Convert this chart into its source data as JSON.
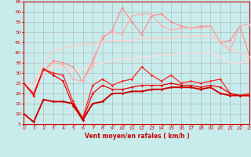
{
  "xlabel": "Vent moyen/en rafales ( km/h )",
  "xlim": [
    0,
    23
  ],
  "ylim": [
    5,
    65
  ],
  "yticks": [
    5,
    10,
    15,
    20,
    25,
    30,
    35,
    40,
    45,
    50,
    55,
    60,
    65
  ],
  "xticks": [
    0,
    1,
    2,
    3,
    4,
    5,
    6,
    7,
    8,
    9,
    10,
    11,
    12,
    13,
    14,
    15,
    16,
    17,
    18,
    19,
    20,
    21,
    22,
    23
  ],
  "bg_color": "#c8ecec",
  "grid_color": "#b0b0b0",
  "series": [
    {
      "x": [
        0,
        1,
        2,
        3,
        4,
        5,
        6,
        7,
        8,
        9,
        10,
        11,
        12,
        13,
        14,
        15,
        16,
        17,
        18,
        19,
        20,
        21,
        22,
        23
      ],
      "y": [
        25,
        19,
        31,
        36,
        35,
        33,
        26,
        36,
        47,
        51,
        62,
        55,
        49,
        58,
        59,
        55,
        53,
        52,
        53,
        53,
        45,
        46,
        53,
        38
      ],
      "color": "#ff8888",
      "linewidth": 0.8,
      "marker": "D",
      "markersize": 1.8,
      "alpha": 1.0,
      "zorder": 3
    },
    {
      "x": [
        0,
        1,
        2,
        3,
        4,
        5,
        6,
        7,
        8,
        9,
        10,
        11,
        12,
        13,
        14,
        15,
        16,
        17,
        18,
        19,
        20,
        21,
        22,
        23
      ],
      "y": [
        25,
        19,
        31,
        35,
        34,
        27,
        26,
        34,
        48,
        50,
        49,
        58,
        59,
        59,
        53,
        51,
        52,
        52,
        52,
        53,
        45,
        41,
        53,
        54
      ],
      "color": "#ffaaaa",
      "linewidth": 0.8,
      "marker": "D",
      "markersize": 1.8,
      "alpha": 1.0,
      "zorder": 3
    },
    {
      "x": [
        0,
        1,
        2,
        3,
        4,
        5,
        6,
        7,
        8,
        9,
        10,
        11,
        12,
        13,
        14,
        15,
        16,
        17,
        18,
        19,
        20,
        21,
        22,
        23
      ],
      "y": [
        25,
        25,
        34,
        41,
        42,
        43,
        44,
        44,
        45,
        46,
        46,
        46,
        47,
        47,
        47,
        47,
        48,
        48,
        48,
        48,
        46,
        42,
        40,
        37
      ],
      "color": "#ffcccc",
      "linewidth": 1.0,
      "marker": null,
      "markersize": 0,
      "alpha": 1.0,
      "zorder": 2
    },
    {
      "x": [
        0,
        1,
        2,
        3,
        4,
        5,
        6,
        7,
        8,
        9,
        10,
        11,
        12,
        13,
        14,
        15,
        16,
        17,
        18,
        19,
        20,
        21,
        22,
        23
      ],
      "y": [
        25,
        23,
        30,
        33,
        33,
        31,
        32,
        34,
        35,
        36,
        37,
        37,
        38,
        38,
        39,
        39,
        40,
        40,
        40,
        40,
        38,
        35,
        35,
        36
      ],
      "color": "#ffdddd",
      "linewidth": 1.0,
      "marker": null,
      "markersize": 0,
      "alpha": 1.0,
      "zorder": 2
    },
    {
      "x": [
        0,
        1,
        2,
        3,
        4,
        5,
        6,
        7,
        8,
        9,
        10,
        11,
        12,
        13,
        14,
        15,
        16,
        17,
        18,
        19,
        20,
        21,
        22,
        23
      ],
      "y": [
        25,
        20,
        32,
        30,
        29,
        16,
        8,
        24,
        27,
        24,
        26,
        27,
        33,
        29,
        26,
        29,
        25,
        26,
        25,
        26,
        27,
        20,
        19,
        20
      ],
      "color": "#ff2222",
      "linewidth": 0.9,
      "marker": "D",
      "markersize": 1.8,
      "alpha": 1.0,
      "zorder": 5
    },
    {
      "x": [
        0,
        1,
        2,
        3,
        4,
        5,
        6,
        7,
        8,
        9,
        10,
        11,
        12,
        13,
        14,
        15,
        16,
        17,
        18,
        19,
        20,
        21,
        22,
        23
      ],
      "y": [
        25,
        19,
        32,
        29,
        26,
        14,
        7,
        20,
        24,
        22,
        22,
        23,
        24,
        24,
        24,
        25,
        24,
        24,
        23,
        24,
        23,
        20,
        19,
        19
      ],
      "color": "#ee0000",
      "linewidth": 0.9,
      "marker": "D",
      "markersize": 1.8,
      "alpha": 1.0,
      "zorder": 5
    },
    {
      "x": [
        0,
        1,
        2,
        3,
        4,
        5,
        6,
        7,
        8,
        9,
        10,
        11,
        12,
        13,
        14,
        15,
        16,
        17,
        18,
        19,
        20,
        21,
        22,
        23
      ],
      "y": [
        10,
        6,
        17,
        16,
        16,
        15,
        7,
        15,
        16,
        20,
        20,
        21,
        21,
        22,
        22,
        23,
        23,
        23,
        22,
        23,
        20,
        19,
        19,
        19
      ],
      "color": "#cc0000",
      "linewidth": 1.4,
      "marker": "D",
      "markersize": 1.8,
      "alpha": 1.0,
      "zorder": 6
    }
  ],
  "arrow_color": "#ff5555",
  "xlabel_color": "#cc0000",
  "xlabel_fontsize": 5.5,
  "tick_color": "#cc0000",
  "tick_fontsize": 4.5
}
